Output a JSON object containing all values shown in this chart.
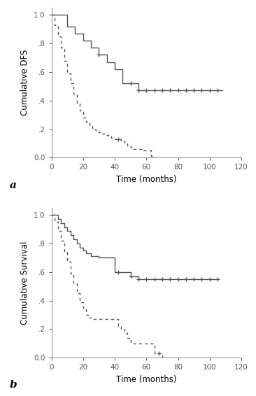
{
  "top": {
    "ylabel": "Cumulative DFS",
    "xlabel": "Time (months)",
    "label": "a",
    "xlim": [
      0,
      120
    ],
    "ylim": [
      0.0,
      1.05
    ],
    "yticks": [
      0.0,
      0.2,
      0.4,
      0.6,
      0.8,
      1.0
    ],
    "ytick_labels": [
      "0.0",
      ".2",
      ".4",
      ".6",
      ".8",
      "1.0"
    ],
    "xticks": [
      0,
      20,
      40,
      60,
      80,
      100,
      120
    ],
    "solid_x": [
      0,
      5,
      10,
      15,
      20,
      25,
      30,
      35,
      40,
      45,
      50,
      55,
      60,
      65,
      70,
      75,
      80,
      85,
      90,
      95,
      100,
      105,
      108
    ],
    "solid_y": [
      1.0,
      1.0,
      0.92,
      0.87,
      0.82,
      0.77,
      0.72,
      0.67,
      0.62,
      0.52,
      0.52,
      0.47,
      0.47,
      0.47,
      0.47,
      0.47,
      0.47,
      0.47,
      0.47,
      0.47,
      0.47,
      0.47,
      0.47
    ],
    "solid_censors_x": [
      30,
      50,
      55,
      60,
      65,
      70,
      75,
      80,
      85,
      90,
      95,
      100,
      105
    ],
    "solid_censors_y": [
      0.72,
      0.52,
      0.47,
      0.47,
      0.47,
      0.47,
      0.47,
      0.47,
      0.47,
      0.47,
      0.47,
      0.47,
      0.47
    ],
    "dashed_x": [
      0,
      2,
      4,
      6,
      8,
      10,
      12,
      14,
      16,
      18,
      20,
      22,
      24,
      26,
      28,
      30,
      32,
      34,
      36,
      38,
      40,
      42,
      44,
      46,
      48,
      50,
      52,
      55,
      58,
      60,
      63,
      65
    ],
    "dashed_y": [
      1.0,
      0.93,
      0.85,
      0.77,
      0.68,
      0.59,
      0.52,
      0.45,
      0.38,
      0.33,
      0.28,
      0.25,
      0.22,
      0.2,
      0.19,
      0.18,
      0.17,
      0.16,
      0.15,
      0.14,
      0.13,
      0.13,
      0.12,
      0.1,
      0.08,
      0.07,
      0.06,
      0.06,
      0.05,
      0.05,
      0.01,
      0.0
    ],
    "dashed_censors_x": [
      42
    ],
    "dashed_censors_y": [
      0.13
    ]
  },
  "bottom": {
    "ylabel": "Cumulative Survival",
    "xlabel": "Time (months)",
    "label": "b",
    "xlim": [
      0,
      120
    ],
    "ylim": [
      0.0,
      1.05
    ],
    "yticks": [
      0.0,
      0.2,
      0.4,
      0.6,
      0.8,
      1.0
    ],
    "ytick_labels": [
      "0.0",
      ".2",
      ".4",
      ".6",
      ".8",
      "1.0"
    ],
    "xticks": [
      0,
      20,
      40,
      60,
      80,
      100,
      120
    ],
    "solid_x": [
      0,
      2,
      4,
      6,
      8,
      10,
      12,
      14,
      16,
      18,
      20,
      22,
      25,
      30,
      35,
      40,
      42,
      45,
      50,
      55,
      60,
      65,
      70,
      75,
      80,
      85,
      90,
      95,
      100,
      105
    ],
    "solid_y": [
      1.0,
      1.0,
      0.97,
      0.94,
      0.91,
      0.89,
      0.86,
      0.83,
      0.8,
      0.77,
      0.75,
      0.73,
      0.71,
      0.7,
      0.7,
      0.6,
      0.6,
      0.6,
      0.57,
      0.55,
      0.55,
      0.55,
      0.55,
      0.55,
      0.55,
      0.55,
      0.55,
      0.55,
      0.55,
      0.55
    ],
    "solid_censors_x": [
      42,
      50,
      55,
      60,
      65,
      70,
      75,
      80,
      85,
      90,
      95,
      100,
      105
    ],
    "solid_censors_y": [
      0.6,
      0.57,
      0.55,
      0.55,
      0.55,
      0.55,
      0.55,
      0.55,
      0.55,
      0.55,
      0.55,
      0.55,
      0.55
    ],
    "dashed_x": [
      0,
      2,
      4,
      6,
      8,
      10,
      12,
      14,
      16,
      18,
      20,
      22,
      24,
      26,
      28,
      30,
      35,
      40,
      42,
      44,
      46,
      48,
      50,
      52,
      55,
      58,
      60,
      62,
      65,
      68,
      70
    ],
    "dashed_y": [
      1.0,
      0.95,
      0.89,
      0.82,
      0.74,
      0.67,
      0.59,
      0.52,
      0.45,
      0.39,
      0.34,
      0.3,
      0.28,
      0.27,
      0.27,
      0.27,
      0.27,
      0.27,
      0.22,
      0.2,
      0.17,
      0.14,
      0.11,
      0.1,
      0.1,
      0.1,
      0.1,
      0.1,
      0.03,
      0.03,
      0.0
    ],
    "dashed_censors_x": [
      68
    ],
    "dashed_censors_y": [
      0.03
    ]
  },
  "line_color": "#555555",
  "background_color": "#ffffff"
}
